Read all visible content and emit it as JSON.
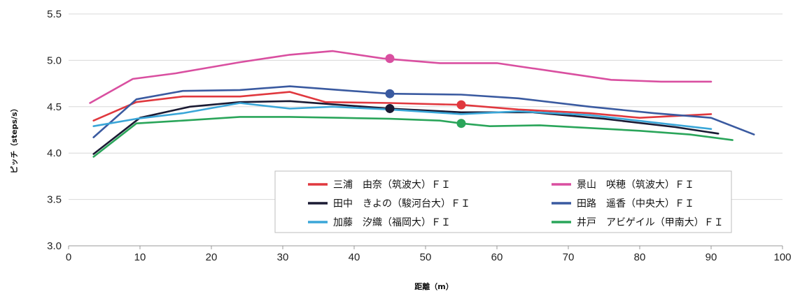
{
  "chart_data": {
    "type": "line",
    "xlabel": "距離（m）",
    "ylabel": "ピッチ（steps/s）",
    "xlim": [
      0,
      100
    ],
    "ylim": [
      3.0,
      5.5
    ],
    "xticks": [
      0,
      10,
      20,
      30,
      40,
      50,
      60,
      70,
      80,
      90,
      100
    ],
    "yticks": [
      "3.0",
      "3.5",
      "4.0",
      "4.5",
      "5.0",
      "5.5"
    ],
    "grid": "horizontal",
    "legend_position": "lower-right",
    "series": [
      {
        "name": "三浦　由奈（筑波大）ＦＩ",
        "color": "#e0383e",
        "x": [
          3.5,
          9.5,
          16,
          24,
          31,
          36,
          45,
          55,
          63,
          73,
          80,
          90
        ],
        "y": [
          4.35,
          4.55,
          4.61,
          4.61,
          4.66,
          4.55,
          4.54,
          4.52,
          4.47,
          4.43,
          4.38,
          4.42
        ],
        "marker": {
          "x": 55,
          "y": 4.52
        }
      },
      {
        "name": "景山　咲穂（筑波大）ＦＩ",
        "color": "#d94fa0",
        "x": [
          3,
          9,
          15,
          24,
          31,
          37,
          44,
          52,
          60,
          68,
          76,
          83,
          90
        ],
        "y": [
          4.54,
          4.8,
          4.86,
          4.98,
          5.06,
          5.1,
          5.02,
          4.97,
          4.97,
          4.88,
          4.79,
          4.77,
          4.77
        ],
        "marker": {
          "x": 45,
          "y": 5.02
        }
      },
      {
        "name": "田中　きよの（駿河台大）ＦＩ",
        "color": "#1a1a33",
        "x": [
          3.5,
          10,
          17,
          24,
          31,
          45,
          55,
          65,
          75,
          85,
          91
        ],
        "y": [
          3.99,
          4.38,
          4.5,
          4.55,
          4.56,
          4.48,
          4.44,
          4.44,
          4.37,
          4.28,
          4.21
        ],
        "marker": {
          "x": 45,
          "y": 4.48
        }
      },
      {
        "name": "田路　遥香（中央大）ＦＩ",
        "color": "#3a5aa0",
        "x": [
          3.5,
          9.5,
          16,
          24,
          31,
          38,
          45,
          55,
          63,
          73,
          82,
          90,
          96
        ],
        "y": [
          4.17,
          4.58,
          4.67,
          4.68,
          4.72,
          4.68,
          4.64,
          4.63,
          4.59,
          4.5,
          4.43,
          4.38,
          4.2
        ],
        "marker": {
          "x": 45,
          "y": 4.64
        }
      },
      {
        "name": "加藤　汐織（福岡大）ＦＩ",
        "color": "#3aa6d8",
        "x": [
          3.5,
          9.5,
          16,
          24,
          31,
          37,
          45,
          55,
          63,
          73,
          82,
          90
        ],
        "y": [
          4.29,
          4.37,
          4.43,
          4.54,
          4.48,
          4.5,
          4.47,
          4.42,
          4.45,
          4.41,
          4.33,
          4.26
        ],
        "marker": null
      },
      {
        "name": "井戸　アビゲイル（甲南大）ＦＩ",
        "color": "#2aa55a",
        "x": [
          3.5,
          9.5,
          16,
          24,
          31,
          38,
          45,
          52,
          55,
          59,
          66,
          73,
          80,
          87,
          93
        ],
        "y": [
          3.96,
          4.32,
          4.35,
          4.39,
          4.39,
          4.38,
          4.37,
          4.35,
          4.32,
          4.29,
          4.3,
          4.27,
          4.24,
          4.2,
          4.14
        ],
        "marker": {
          "x": 55,
          "y": 4.32
        }
      }
    ]
  }
}
